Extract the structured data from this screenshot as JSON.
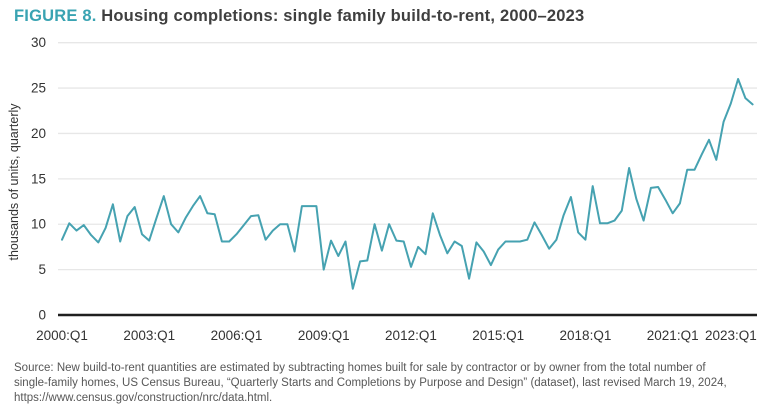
{
  "title": {
    "figure_label": "FIGURE 8.",
    "text": " Housing completions: single family build-to-rent, 2000–2023"
  },
  "chart_data": {
    "type": "line",
    "title": "Housing completions: single family build-to-rent, 2000-2023",
    "ylabel": "thousands of units, quarterly",
    "ylim": [
      0,
      30
    ],
    "yticks": [
      0,
      5,
      10,
      15,
      20,
      25,
      30
    ],
    "grid": "horizontal-only",
    "legend": "none",
    "x_unit": "quarter",
    "x_start": "2000:Q1",
    "x_end": "2023:Q4",
    "xtick_labels": [
      "2000:Q1",
      "2003:Q1",
      "2006:Q1",
      "2009:Q1",
      "2012:Q1",
      "2015:Q1",
      "2018:Q1",
      "2021:Q1",
      "2023:Q1"
    ],
    "xtick_quarter_index": [
      0,
      12,
      24,
      36,
      48,
      60,
      72,
      84,
      92
    ],
    "series": [
      {
        "name": "Single family build-to-rent completions",
        "values": [
          8.3,
          10.1,
          9.3,
          9.9,
          8.8,
          8.0,
          9.6,
          12.2,
          8.1,
          10.9,
          11.9,
          8.9,
          8.2,
          10.7,
          13.1,
          10.0,
          9.1,
          10.7,
          12.0,
          13.1,
          11.2,
          11.1,
          8.1,
          8.1,
          8.9,
          9.9,
          10.9,
          11.0,
          8.3,
          9.3,
          10.0,
          10.0,
          7.0,
          12.0,
          12.0,
          12.0,
          5.0,
          8.2,
          6.5,
          8.1,
          2.9,
          5.9,
          6.0,
          10.0,
          7.1,
          10.0,
          8.2,
          8.1,
          5.3,
          7.5,
          6.7,
          11.2,
          8.8,
          6.8,
          8.1,
          7.6,
          4.0,
          8.0,
          7.0,
          5.5,
          7.2,
          8.1,
          8.1,
          8.1,
          8.3,
          10.2,
          8.8,
          7.3,
          8.3,
          11.0,
          13.0,
          9.1,
          8.3,
          14.2,
          10.1,
          10.1,
          10.4,
          11.5,
          16.2,
          12.8,
          10.4,
          14.0,
          14.1,
          12.7,
          11.2,
          12.3,
          16.0,
          16.0,
          17.7,
          19.3,
          17.1,
          21.3,
          23.3,
          26.0,
          23.9,
          23.2
        ]
      }
    ]
  },
  "source": {
    "lines": [
      "Source: New build-to-rent quantities are estimated by subtracting homes built for sale by contractor or by owner from the total number of",
      "single-family homes, US Census Bureau, “Quarterly Starts and Completions by Purpose and Design” (dataset), last revised March 19, 2024,",
      "https://www.census.gov/construction/nrc/data.html."
    ]
  },
  "colors": {
    "accent": "#39a3b2",
    "line": "#46a2b1",
    "grid": "#e7e7e7",
    "axis": "#1f1f1f",
    "tick_text": "#333333",
    "title_text": "#3f3f3f",
    "source_text": "#575757"
  }
}
